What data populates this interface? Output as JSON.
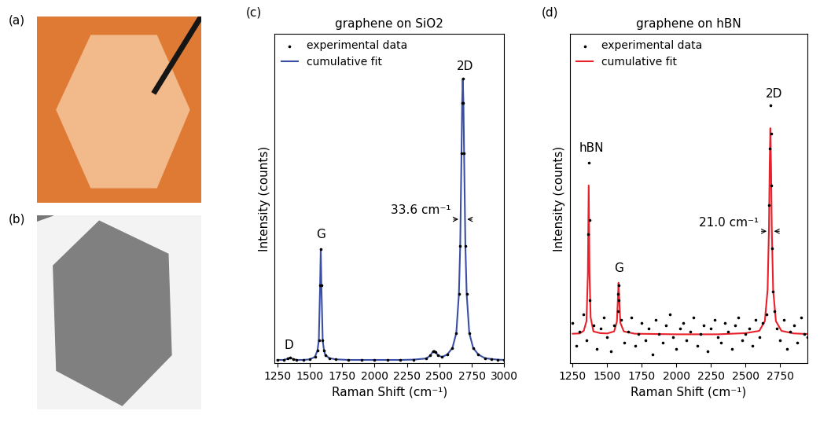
{
  "images": [
    {
      "label": "(a)"
    },
    {
      "label": "(b)"
    }
  ],
  "chart_data": [
    {
      "type": "line",
      "label": "(c)",
      "title": "graphene on SiO2",
      "xlabel": "Raman Shift (cm⁻¹)",
      "ylabel": "Intensity (counts)",
      "xlim": [
        1230,
        3000
      ],
      "xticks": [
        1250,
        1500,
        1750,
        2000,
        2250,
        2500,
        2750,
        3000
      ],
      "ylim": [
        0,
        110
      ],
      "tick_labels": "x",
      "legend": "upper left",
      "series": [
        {
          "name": "experimental data",
          "type": "scatter",
          "marker": "dot",
          "color": "#000000",
          "x": [
            1250,
            1300,
            1330,
            1350,
            1370,
            1400,
            1450,
            1500,
            1540,
            1560,
            1570,
            1580,
            1585,
            1590,
            1600,
            1610,
            1620,
            1650,
            1700,
            1800,
            1900,
            2000,
            2100,
            2200,
            2300,
            2400,
            2430,
            2450,
            2460,
            2470,
            2490,
            2520,
            2560,
            2600,
            2630,
            2650,
            2660,
            2670,
            2675,
            2680,
            2685,
            2690,
            2700,
            2710,
            2730,
            2760,
            2800,
            2850,
            2900,
            2950,
            3000
          ],
          "values": [
            1.0,
            1.0,
            1.4,
            1.8,
            1.3,
            1.0,
            1.0,
            1.2,
            2.0,
            4.2,
            7.6,
            26,
            38,
            26,
            7.6,
            4.2,
            2.7,
            1.6,
            1.2,
            1.0,
            1.0,
            1.0,
            1.0,
            1.0,
            1.1,
            1.5,
            2.5,
            3.8,
            4.0,
            3.6,
            2.5,
            2.0,
            2.8,
            5,
            10,
            23,
            39,
            70,
            87,
            95,
            87,
            70,
            39,
            23,
            10,
            5,
            2.8,
            1.6,
            1.3,
            1.1,
            1.0
          ]
        },
        {
          "name": "cumulative fit",
          "type": "line",
          "line_style": "solid",
          "color": "#3a4fa3",
          "x": [
            1250,
            1300,
            1330,
            1350,
            1370,
            1400,
            1450,
            1500,
            1540,
            1560,
            1570,
            1580,
            1585,
            1590,
            1600,
            1610,
            1620,
            1650,
            1700,
            1800,
            1900,
            2000,
            2100,
            2200,
            2300,
            2400,
            2430,
            2450,
            2460,
            2470,
            2490,
            2520,
            2560,
            2600,
            2630,
            2650,
            2660,
            2670,
            2675,
            2680,
            2685,
            2690,
            2700,
            2710,
            2730,
            2760,
            2800,
            2850,
            2900,
            2950,
            3000
          ],
          "values": [
            1.0,
            1.0,
            1.4,
            1.8,
            1.3,
            1.0,
            1.0,
            1.2,
            2.0,
            4.2,
            7.6,
            26,
            38,
            26,
            7.6,
            4.2,
            2.7,
            1.6,
            1.2,
            1.0,
            1.0,
            1.0,
            1.0,
            1.0,
            1.1,
            1.5,
            2.5,
            3.8,
            4.0,
            3.6,
            2.5,
            2.0,
            2.8,
            5,
            10,
            23,
            39,
            70,
            87,
            95,
            87,
            70,
            39,
            23,
            10,
            5,
            2.8,
            1.6,
            1.3,
            1.1,
            1.0
          ]
        }
      ],
      "annotations": [
        {
          "text": "D",
          "x": 1340,
          "y": 4
        },
        {
          "text": "G",
          "x": 1585,
          "y": 41
        },
        {
          "text": "2D",
          "x": 2700,
          "y": 97
        }
      ],
      "fwhm": {
        "text": "33.6 cm⁻¹",
        "value": 33.6,
        "center": 2680,
        "y": 48
      }
    },
    {
      "type": "line",
      "label": "(d)",
      "title": "graphene on hBN",
      "xlabel": "Raman Shift (cm⁻¹)",
      "ylabel": "Intensity (counts)",
      "xlim": [
        1230,
        2950
      ],
      "xticks": [
        1250,
        1500,
        1750,
        2000,
        2250,
        2500,
        2750
      ],
      "ylim": [
        0,
        115
      ],
      "tick_labels": "x",
      "legend": "upper left",
      "series": [
        {
          "name": "experimental data",
          "type": "scatter",
          "marker": "dot",
          "color": "#000000",
          "x": [
            1250,
            1275,
            1300,
            1325,
            1350,
            1362,
            1366,
            1370,
            1375,
            1400,
            1425,
            1450,
            1475,
            1500,
            1525,
            1550,
            1575,
            1580,
            1583,
            1586,
            1600,
            1625,
            1650,
            1675,
            1700,
            1725,
            1750,
            1775,
            1800,
            1825,
            1850,
            1875,
            1900,
            1925,
            1950,
            1975,
            2000,
            2025,
            2050,
            2075,
            2100,
            2125,
            2150,
            2175,
            2200,
            2225,
            2250,
            2275,
            2300,
            2325,
            2350,
            2375,
            2400,
            2425,
            2450,
            2475,
            2500,
            2525,
            2550,
            2575,
            2600,
            2625,
            2650,
            2670,
            2675,
            2680,
            2684,
            2688,
            2694,
            2700,
            2710,
            2725,
            2750,
            2775,
            2800,
            2825,
            2850,
            2875,
            2900,
            2925,
            2950
          ],
          "values": [
            14,
            6,
            11,
            17,
            8,
            45,
            70,
            50,
            22,
            13,
            5,
            12,
            16,
            9,
            4,
            13,
            18,
            24,
            27,
            22,
            15,
            7,
            11,
            16,
            6,
            10,
            14,
            8,
            12,
            3,
            15,
            10,
            7,
            13,
            17,
            9,
            5,
            12,
            14,
            8,
            11,
            16,
            6,
            10,
            13,
            4,
            12,
            15,
            9,
            7,
            14,
            11,
            5,
            13,
            16,
            8,
            10,
            12,
            6,
            15,
            9,
            14,
            17,
            55,
            75,
            90,
            80,
            62,
            40,
            25,
            18,
            12,
            8,
            15,
            5,
            11,
            13,
            7,
            16,
            10,
            9
          ]
        },
        {
          "name": "cumulative fit",
          "type": "line",
          "line_style": "solid",
          "color": "#e8202a",
          "x": [
            1250,
            1300,
            1330,
            1350,
            1360,
            1366,
            1372,
            1380,
            1400,
            1450,
            1500,
            1550,
            1570,
            1577,
            1582,
            1587,
            1595,
            1620,
            1700,
            2000,
            2300,
            2500,
            2600,
            2640,
            2660,
            2670,
            2675,
            2680,
            2685,
            2690,
            2700,
            2720,
            2760,
            2850,
            2950
          ],
          "values": [
            10.2,
            10.3,
            11.2,
            14.6,
            31,
            62,
            31,
            15.9,
            11,
            10.4,
            10.3,
            11,
            14.5,
            22,
            28,
            22,
            14,
            11,
            10.2,
            10,
            10,
            10.4,
            11.2,
            14.6,
            25.6,
            47.6,
            68.7,
            82,
            68.7,
            47.6,
            25.6,
            14.6,
            11.2,
            10.3,
            10.1
          ]
        }
      ],
      "annotations": [
        {
          "text": "hBN",
          "x": 1385,
          "y": 73
        },
        {
          "text": "G",
          "x": 1585,
          "y": 31
        },
        {
          "text": "2D",
          "x": 2705,
          "y": 92
        }
      ],
      "fwhm": {
        "text": "21.0 cm⁻¹",
        "value": 21.0,
        "center": 2680,
        "y": 46
      }
    }
  ]
}
